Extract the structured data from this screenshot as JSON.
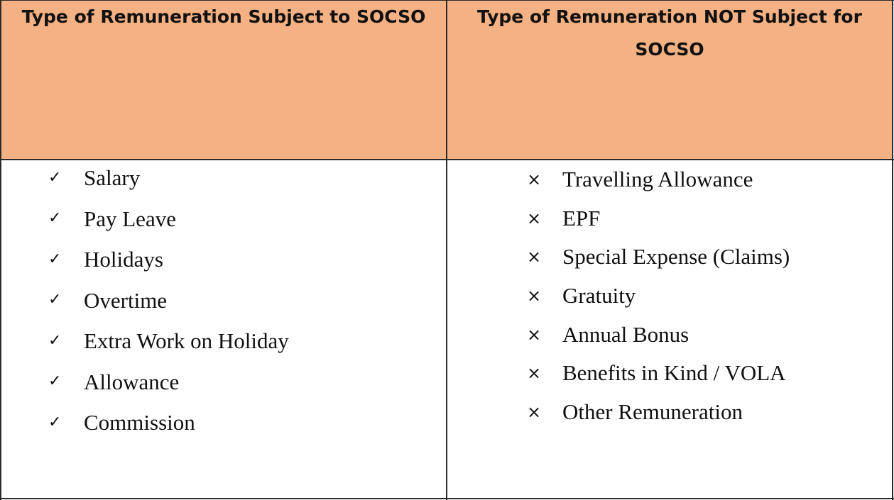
{
  "headers": {
    "subject": "Type of Remuneration Subject to SOCSO",
    "not_subject_line1": "Type of Remuneration NOT Subject for",
    "not_subject_line2": "SOCSO"
  },
  "subject_items": [
    {
      "mark": "✓",
      "text": "Salary"
    },
    {
      "mark": "✓",
      "text": "Pay Leave"
    },
    {
      "mark": "✓",
      "text": "Holidays"
    },
    {
      "mark": "✓",
      "text": "Overtime"
    },
    {
      "mark": "✓",
      "text": "Extra Work on Holiday"
    },
    {
      "mark": "✓",
      "text": "Allowance"
    },
    {
      "mark": "✓",
      "text": "Commission"
    }
  ],
  "not_subject_items": [
    {
      "mark": "×",
      "text": "Travelling Allowance"
    },
    {
      "mark": "×",
      "text": "EPF"
    },
    {
      "mark": "×",
      "text": "Special Expense (Claims)"
    },
    {
      "mark": "×",
      "text": "Gratuity"
    },
    {
      "mark": "×",
      "text": "Annual Bonus"
    },
    {
      "mark": "×",
      "text": "Benefits in Kind / VOLA"
    },
    {
      "mark": "×",
      "text": "Other Remuneration"
    }
  ],
  "colors": {
    "header_fill": "#f4b183",
    "border": "#2b2b2b"
  }
}
